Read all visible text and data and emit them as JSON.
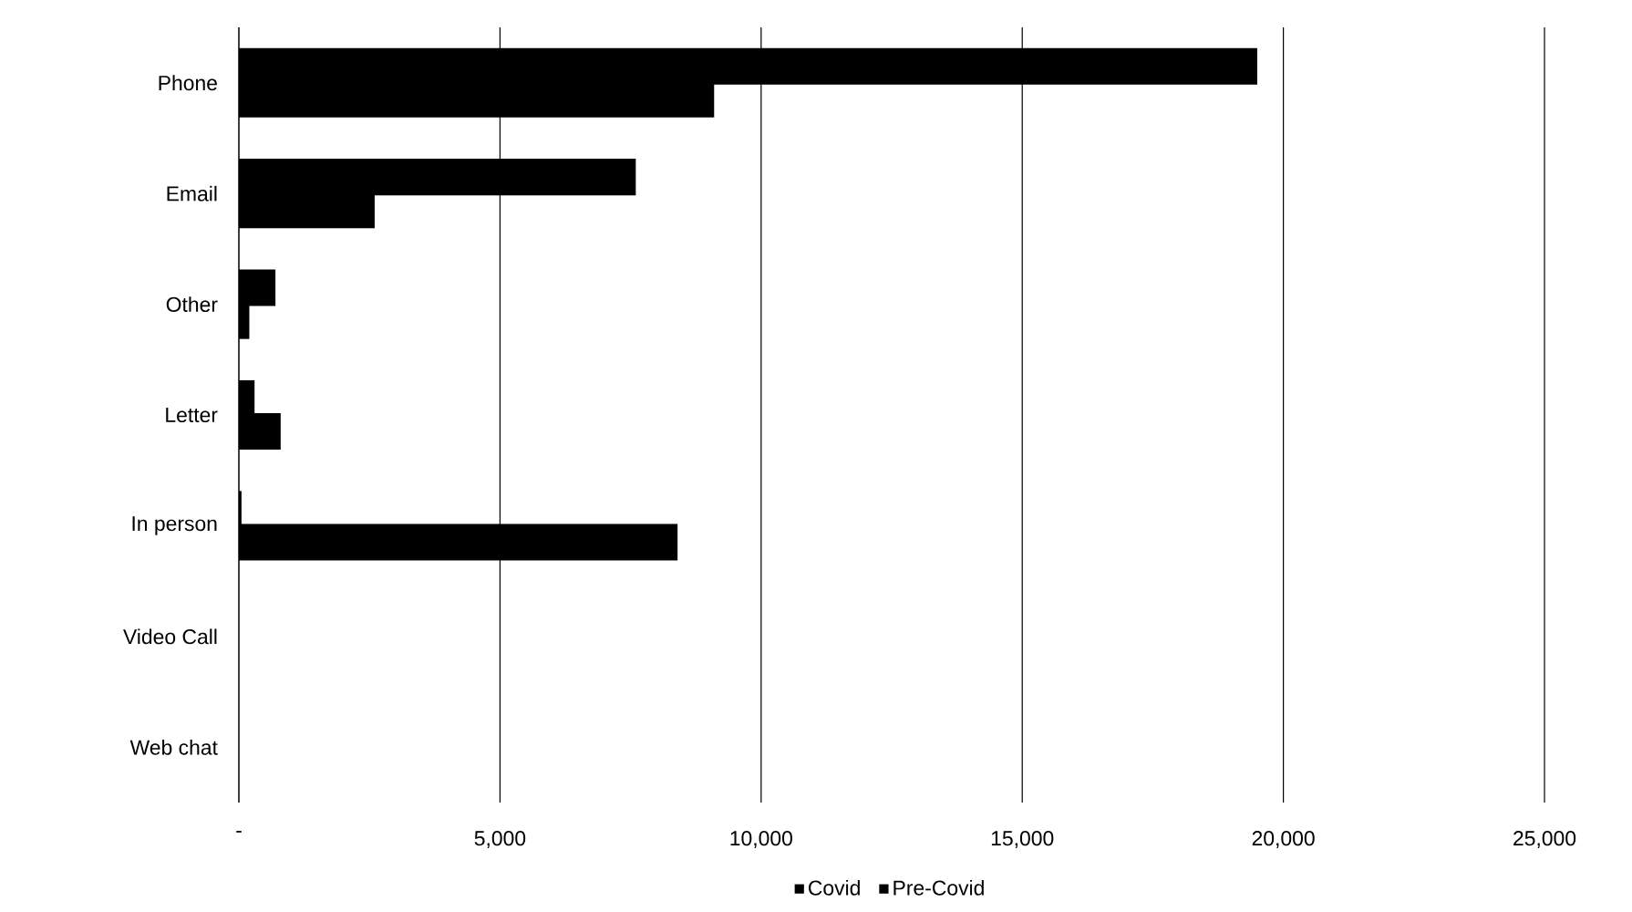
{
  "chart_data": {
    "type": "bar",
    "orientation": "horizontal",
    "categories": [
      "Phone",
      "Email",
      "Other",
      "Letter",
      "In person",
      "Video Call",
      "Web chat"
    ],
    "series": [
      {
        "name": "Covid",
        "color": "#000000",
        "values": [
          19500,
          7600,
          700,
          300,
          50,
          0,
          0
        ]
      },
      {
        "name": "Pre-Covid",
        "color": "#000000",
        "values": [
          9100,
          2600,
          200,
          800,
          8400,
          0,
          0
        ]
      }
    ],
    "xlim": [
      0,
      25000
    ],
    "xticks": [
      {
        "value": 0,
        "label": "-"
      },
      {
        "value": 5000,
        "label": "5,000"
      },
      {
        "value": 10000,
        "label": "10,000"
      },
      {
        "value": 15000,
        "label": "15,000"
      },
      {
        "value": 20000,
        "label": "20,000"
      },
      {
        "value": 25000,
        "label": "25,000"
      }
    ],
    "grid": "x",
    "legend": "bottom"
  }
}
